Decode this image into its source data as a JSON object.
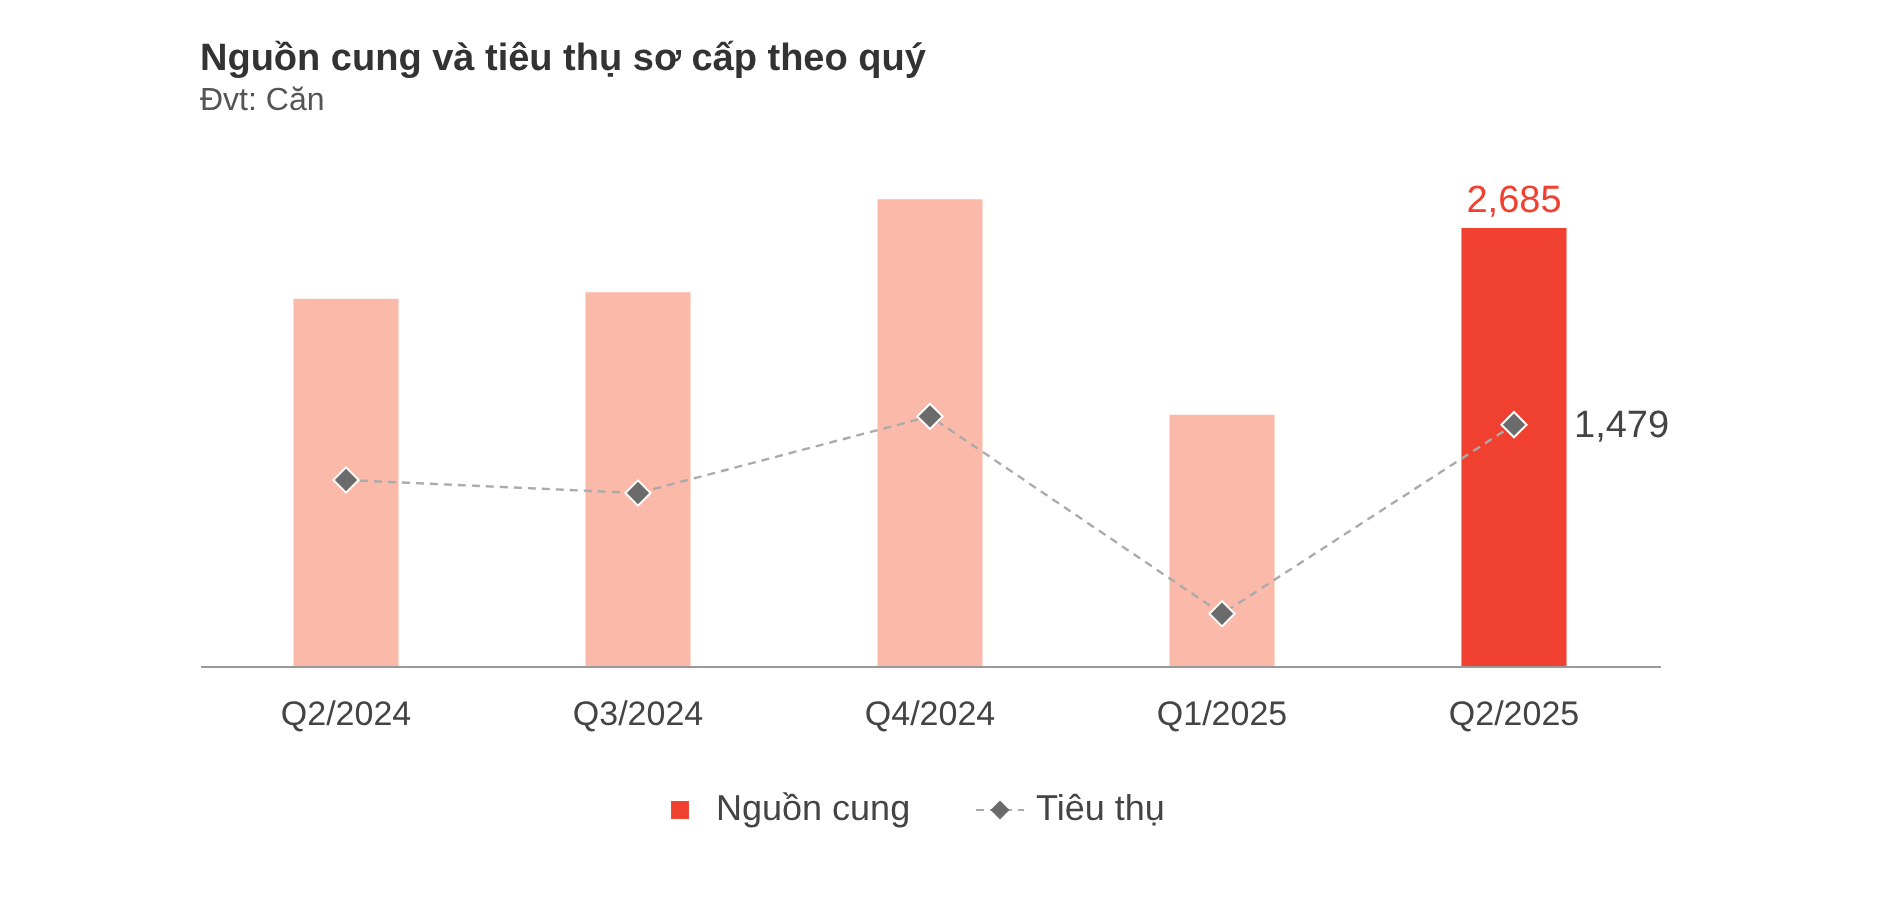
{
  "chart_data": {
    "type": "bar",
    "title": "Nguồn cung và tiêu thụ sơ cấp theo quý",
    "subtitle": "Đvt: Căn",
    "categories": [
      "Q2/2024",
      "Q3/2024",
      "Q4/2024",
      "Q1/2025",
      "Q2/2025"
    ],
    "series": [
      {
        "name": "Nguồn cung",
        "color": "#f04130",
        "colors": [
          "#fbb9aa",
          "#fbb9aa",
          "#fbb9aa",
          "#fbb9aa",
          "#f04130"
        ],
        "values": [
          2250,
          2290,
          2860,
          1540,
          2685
        ],
        "value_labels": [
          null,
          null,
          null,
          null,
          "2,685"
        ]
      },
      {
        "name": "Tiêu thụ",
        "type": "line",
        "color": "#6b6b6b",
        "line_style": "dashed",
        "marker": "diamond",
        "values": [
          1140,
          1060,
          1530,
          320,
          1479
        ],
        "value_labels": [
          null,
          null,
          null,
          null,
          "1,479"
        ]
      }
    ],
    "legend": "bottom"
  }
}
